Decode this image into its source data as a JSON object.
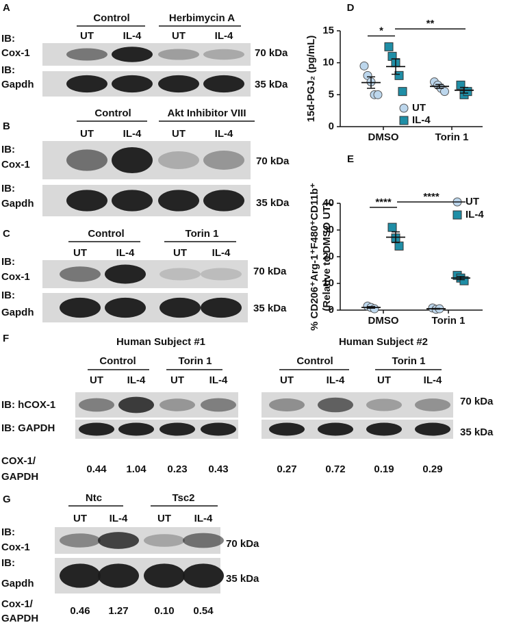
{
  "panels": {
    "a": {
      "label": "A",
      "groups": [
        "Control",
        "Herbimycin A"
      ],
      "lanes": [
        "UT",
        "IL-4",
        "UT",
        "IL-4"
      ],
      "rows": [
        {
          "ib": "IB:",
          "protein": "Cox-1",
          "size": "70 kDa"
        },
        {
          "ib": "IB:",
          "protein": "Gapdh",
          "size": "35 kDa"
        }
      ]
    },
    "b": {
      "label": "B",
      "groups": [
        "Control",
        "Akt Inhibitor VIII"
      ],
      "lanes": [
        "UT",
        "IL-4",
        "UT",
        "IL-4"
      ],
      "rows": [
        {
          "ib": "IB:",
          "protein": "Cox-1",
          "size": "70 kDa"
        },
        {
          "ib": "IB:",
          "protein": "Gapdh",
          "size": "35 kDa"
        }
      ]
    },
    "c": {
      "label": "C",
      "groups": [
        "Control",
        "Torin 1"
      ],
      "lanes": [
        "UT",
        "IL-4",
        "UT",
        "IL-4"
      ],
      "rows": [
        {
          "ib": "IB:",
          "protein": "Cox-1",
          "size": "70  kDa"
        },
        {
          "ib": "IB:",
          "protein": "Gapdh",
          "size": "35 kDa"
        }
      ]
    },
    "f": {
      "label": "F",
      "subjects": [
        {
          "title": "Human Subject #1",
          "groups": [
            "Control",
            "Torin 1"
          ],
          "lanes": [
            "UT",
            "IL-4",
            "UT",
            "IL-4"
          ],
          "ratios": [
            "0.44",
            "1.04",
            "0.23",
            "0.43"
          ]
        },
        {
          "title": "Human Subject #2",
          "groups": [
            "Control",
            "Torin 1"
          ],
          "lanes": [
            "UT",
            "IL-4",
            "UT",
            "IL-4"
          ],
          "ratios": [
            "0.27",
            "0.72",
            "0.19",
            "0.29"
          ]
        }
      ],
      "rows": [
        {
          "label": "IB: hCOX-1",
          "size": "70  kDa"
        },
        {
          "label": "IB: GAPDH",
          "size": "35 kDa"
        }
      ],
      "ratio_label": [
        "COX-1/",
        "GAPDH"
      ]
    },
    "g": {
      "label": "G",
      "groups": [
        "Ntc",
        "Tsc2"
      ],
      "lanes": [
        "UT",
        "IL-4",
        "UT",
        "IL-4"
      ],
      "rows": [
        {
          "ib": "IB:",
          "protein": "Cox-1",
          "size": "70  kDa"
        },
        {
          "ib": "IB:",
          "protein": "Gapdh",
          "size": "35 kDa"
        }
      ],
      "ratio_label": [
        "Cox-1/",
        "GAPDH"
      ],
      "ratios": [
        "0.46",
        "1.27",
        "0.10",
        "0.54"
      ]
    }
  },
  "chart_data": [
    {
      "type": "scatter",
      "label": "D",
      "y_label": "15d-PGJ₂ (pg/mL)",
      "categories": [
        "DMSO",
        "Torin 1"
      ],
      "ylim": [
        0,
        15
      ],
      "yticks": [
        0,
        5,
        10,
        15
      ],
      "legend": "lower-right",
      "annotations": [
        "*",
        "**"
      ],
      "series": [
        {
          "name": "UT",
          "color": "#bcd6ec",
          "marker": "circle",
          "values": [
            [
              9.5,
              8,
              7,
              5,
              5
            ],
            [
              7,
              6.5,
              6,
              5.5
            ]
          ],
          "means": [
            6.9,
            6.3
          ],
          "errors": [
            0.9,
            0.3
          ]
        },
        {
          "name": "IL-4",
          "color": "#1f8ea6",
          "marker": "square",
          "values": [
            [
              12.5,
              11,
              10,
              8,
              5.5
            ],
            [
              6.5,
              5,
              5.5
            ]
          ],
          "means": [
            9.4,
            5.7
          ],
          "errors": [
            1.2,
            0.45
          ]
        }
      ]
    },
    {
      "type": "scatter",
      "label": "E",
      "y_label": "% CD206⁺Arg-1⁺F480⁺CD11b⁺",
      "y_sublabel": "(Relative to DMSO UT)",
      "categories": [
        "DMSO",
        "Torin 1"
      ],
      "ylim": [
        0,
        40
      ],
      "yticks": [
        0,
        10,
        20,
        30,
        40
      ],
      "legend": "upper-right",
      "annotations": [
        "****",
        "****"
      ],
      "series": [
        {
          "name": "UT",
          "color": "#bcd6ec",
          "marker": "circle",
          "values": [
            [
              1.5,
              1,
              0.5
            ],
            [
              0.8,
              0.3,
              0.5
            ]
          ],
          "means": [
            1,
            0.5
          ],
          "errors": [
            0.3,
            0.15
          ]
        },
        {
          "name": "IL-4",
          "color": "#1f8ea6",
          "marker": "square",
          "values": [
            [
              31,
              27,
              24
            ],
            [
              13,
              12,
              11
            ]
          ],
          "means": [
            27.3,
            12
          ],
          "errors": [
            2,
            0.6
          ]
        }
      ]
    }
  ]
}
